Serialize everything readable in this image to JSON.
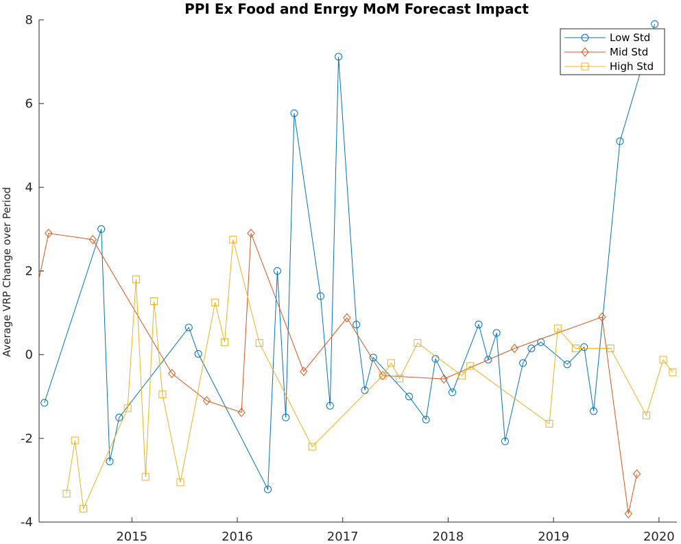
{
  "chart_data": {
    "type": "line",
    "title": "PPI Ex Food and Enrgy MoM Forecast Impact",
    "xlabel": "",
    "ylabel": "Average VRP Change over Period",
    "xlim": [
      2014.12,
      2020.17
    ],
    "ylim": [
      -4,
      8
    ],
    "x_ticks": [
      2015,
      2016,
      2017,
      2018,
      2019,
      2020
    ],
    "y_ticks": [
      -4,
      -2,
      0,
      2,
      4,
      6,
      8
    ],
    "grid": false,
    "legend_position": "top-right",
    "series": [
      {
        "name": "Low Std",
        "color": "#0072BD",
        "marker": "circle",
        "points": [
          [
            2014.17,
            -1.15
          ],
          [
            2014.71,
            3.0
          ],
          [
            2014.79,
            -2.55
          ],
          [
            2014.88,
            -1.5
          ],
          [
            2015.54,
            0.65
          ],
          [
            2015.63,
            0.02
          ],
          [
            2016.29,
            -3.22
          ],
          [
            2016.38,
            2.0
          ],
          [
            2016.46,
            -1.5
          ],
          [
            2016.54,
            5.77
          ],
          [
            2016.79,
            1.4
          ],
          [
            2016.88,
            -1.22
          ],
          [
            2016.96,
            7.12
          ],
          [
            2017.13,
            0.72
          ],
          [
            2017.21,
            -0.85
          ],
          [
            2017.29,
            -0.07
          ],
          [
            2017.63,
            -1.0
          ],
          [
            2017.79,
            -1.55
          ],
          [
            2017.88,
            -0.1
          ],
          [
            2018.04,
            -0.9
          ],
          [
            2018.29,
            0.72
          ],
          [
            2018.38,
            -0.12
          ],
          [
            2018.46,
            0.52
          ],
          [
            2018.54,
            -2.07
          ],
          [
            2018.71,
            -0.2
          ],
          [
            2018.79,
            0.15
          ],
          [
            2018.88,
            0.3
          ],
          [
            2019.13,
            -0.23
          ],
          [
            2019.29,
            0.18
          ],
          [
            2019.38,
            -1.35
          ],
          [
            2019.63,
            5.1
          ],
          [
            2019.96,
            7.9
          ]
        ]
      },
      {
        "name": "Mid Std",
        "color": "#D95319",
        "marker": "diamond",
        "points": [
          [
            2014.04,
            0.85
          ],
          [
            2014.21,
            2.9
          ],
          [
            2014.63,
            2.75
          ],
          [
            2015.38,
            -0.45
          ],
          [
            2015.71,
            -1.1
          ],
          [
            2016.04,
            -1.38
          ],
          [
            2016.13,
            2.9
          ],
          [
            2016.63,
            -0.4
          ],
          [
            2017.04,
            0.88
          ],
          [
            2017.38,
            -0.5
          ],
          [
            2017.96,
            -0.58
          ],
          [
            2018.63,
            0.15
          ],
          [
            2019.46,
            0.9
          ],
          [
            2019.71,
            -3.8
          ],
          [
            2019.79,
            -2.85
          ]
        ]
      },
      {
        "name": "High Std",
        "color": "#EDB120",
        "marker": "square",
        "points": [
          [
            2014.38,
            -3.32
          ],
          [
            2014.46,
            -2.05
          ],
          [
            2014.54,
            -3.68
          ],
          [
            2014.96,
            -1.28
          ],
          [
            2015.04,
            1.8
          ],
          [
            2015.13,
            -2.92
          ],
          [
            2015.21,
            1.28
          ],
          [
            2015.29,
            -0.95
          ],
          [
            2015.46,
            -3.05
          ],
          [
            2015.79,
            1.25
          ],
          [
            2015.88,
            0.3
          ],
          [
            2015.96,
            2.75
          ],
          [
            2016.21,
            0.28
          ],
          [
            2016.71,
            -2.2
          ],
          [
            2017.38,
            -0.5
          ],
          [
            2017.46,
            -0.2
          ],
          [
            2017.54,
            -0.57
          ],
          [
            2017.71,
            0.28
          ],
          [
            2018.13,
            -0.5
          ],
          [
            2018.21,
            -0.27
          ],
          [
            2018.96,
            -1.65
          ],
          [
            2019.04,
            0.63
          ],
          [
            2019.21,
            0.15
          ],
          [
            2019.54,
            0.15
          ],
          [
            2019.88,
            -1.45
          ],
          [
            2020.04,
            -0.12
          ],
          [
            2020.13,
            -0.42
          ]
        ]
      }
    ]
  }
}
